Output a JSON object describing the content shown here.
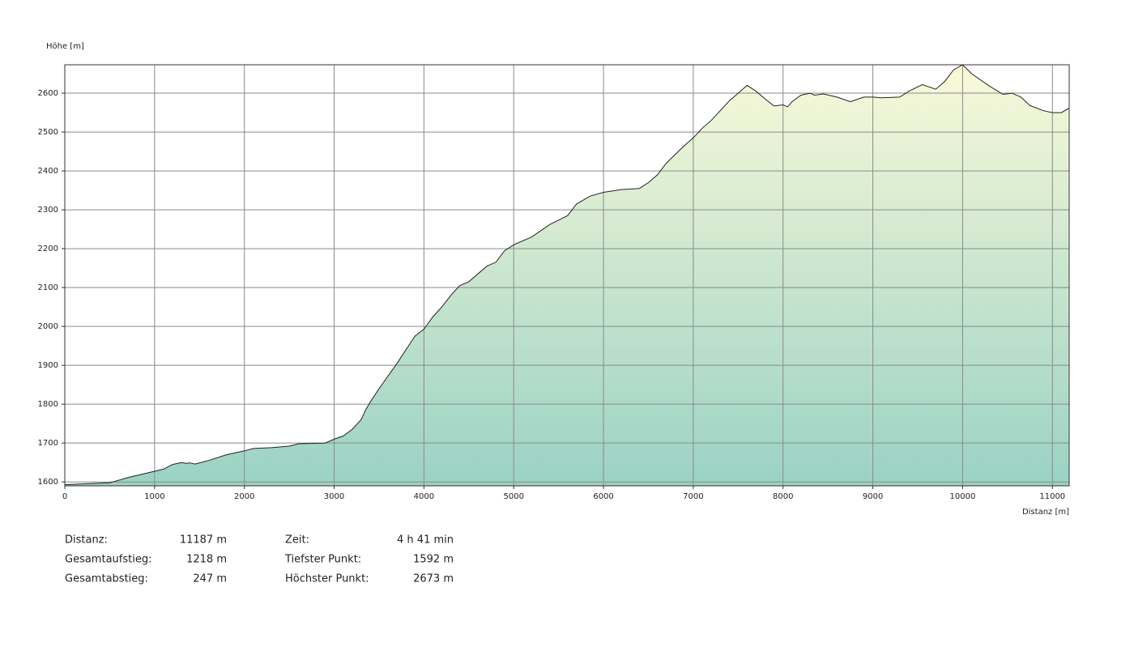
{
  "chart_data": {
    "type": "area",
    "y_label": "Höhe [m]",
    "x_label": "Distanz [m]",
    "x": [
      0,
      200,
      500,
      550,
      700,
      900,
      1100,
      1200,
      1300,
      1350,
      1400,
      1450,
      1600,
      1800,
      1900,
      2000,
      2100,
      2300,
      2500,
      2600,
      2900,
      3000,
      3100,
      3200,
      3300,
      3350,
      3400,
      3500,
      3700,
      3800,
      3900,
      4000,
      4100,
      4200,
      4300,
      4400,
      4500,
      4700,
      4800,
      4900,
      5000,
      5200,
      5400,
      5600,
      5700,
      5850,
      6000,
      6200,
      6400,
      6500,
      6600,
      6700,
      6900,
      7000,
      7100,
      7200,
      7300,
      7400,
      7500,
      7600,
      7700,
      7800,
      7900,
      8000,
      8050,
      8100,
      8200,
      8300,
      8350,
      8450,
      8600,
      8750,
      8900,
      9000,
      9100,
      9300,
      9400,
      9550,
      9700,
      9800,
      9900,
      10000,
      10100,
      10300,
      10450,
      10550,
      10650,
      10750,
      10900,
      11000,
      11100,
      11187
    ],
    "values": [
      1593,
      1595,
      1598,
      1601,
      1611,
      1622,
      1633,
      1645,
      1650,
      1648,
      1649,
      1646,
      1655,
      1670,
      1675,
      1680,
      1686,
      1688,
      1692,
      1698,
      1700,
      1710,
      1718,
      1735,
      1760,
      1785,
      1805,
      1840,
      1905,
      1940,
      1975,
      1993,
      2025,
      2050,
      2080,
      2105,
      2115,
      2155,
      2165,
      2195,
      2210,
      2230,
      2262,
      2285,
      2315,
      2335,
      2345,
      2352,
      2355,
      2370,
      2390,
      2420,
      2465,
      2485,
      2510,
      2530,
      2555,
      2580,
      2600,
      2620,
      2605,
      2585,
      2567,
      2570,
      2565,
      2578,
      2595,
      2600,
      2595,
      2598,
      2590,
      2578,
      2590,
      2590,
      2588,
      2590,
      2605,
      2622,
      2610,
      2630,
      2660,
      2673,
      2650,
      2618,
      2597,
      2600,
      2590,
      2568,
      2555,
      2550,
      2550,
      2562
    ],
    "line_color": "#222222",
    "fill_top": "#f9f9d9",
    "fill_bottom": "#9ad2c4",
    "xlim": [
      0,
      11187
    ],
    "ylim": [
      1590,
      2673
    ],
    "xticks": [
      0,
      1000,
      2000,
      3000,
      4000,
      5000,
      6000,
      7000,
      8000,
      9000,
      10000,
      11000
    ],
    "yticks": [
      1600,
      1700,
      1800,
      1900,
      2000,
      2100,
      2200,
      2300,
      2400,
      2500,
      2600
    ],
    "grid": true
  },
  "summary": {
    "left": [
      {
        "label": "Distanz:",
        "value": "11187 m"
      },
      {
        "label": "Gesamtaufstieg:",
        "value": "1218 m"
      },
      {
        "label": "Gesamtabstieg:",
        "value": "247 m"
      }
    ],
    "right": [
      {
        "label": "Zeit:",
        "value": "4 h 41 min"
      },
      {
        "label": "Tiefster Punkt:",
        "value": "1592 m"
      },
      {
        "label": "Höchster Punkt:",
        "value": "2673 m"
      }
    ]
  }
}
